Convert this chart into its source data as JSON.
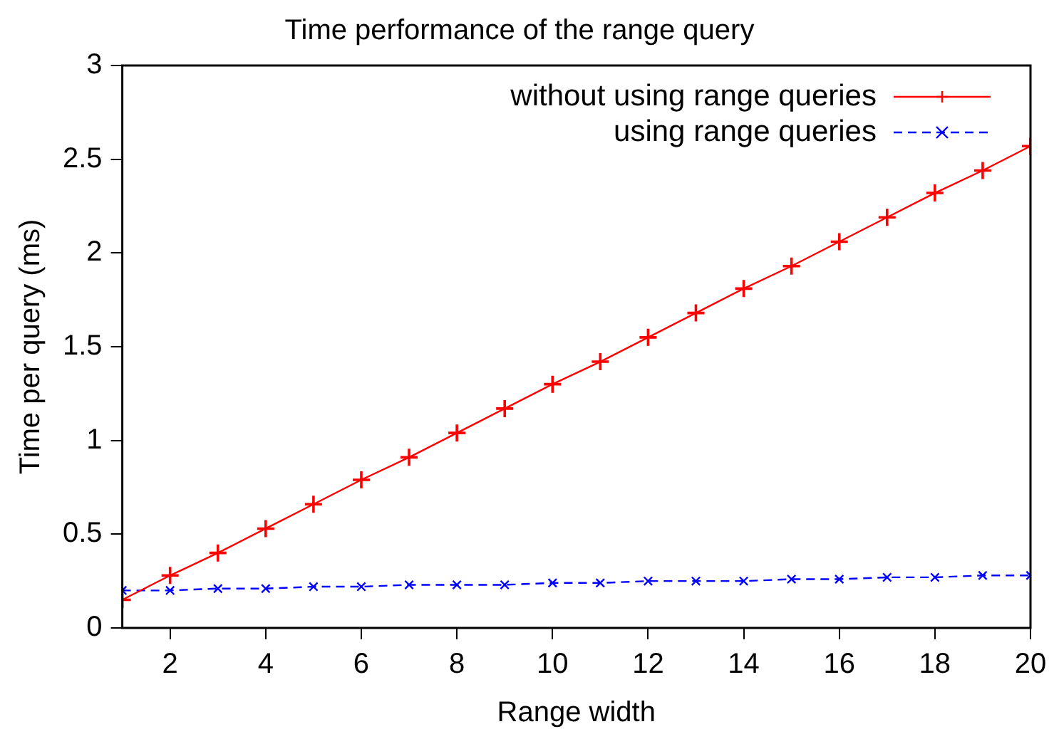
{
  "chart_data": {
    "type": "line",
    "title": "Time performance of the range query",
    "xlabel": "Range width",
    "ylabel": "Time per query (ms)",
    "x": [
      1,
      2,
      3,
      4,
      5,
      6,
      7,
      8,
      9,
      10,
      11,
      12,
      13,
      14,
      15,
      16,
      17,
      18,
      19,
      20
    ],
    "xlim": [
      1,
      20
    ],
    "xticks": [
      2,
      4,
      6,
      8,
      10,
      12,
      14,
      16,
      18,
      20
    ],
    "ylim": [
      0,
      3
    ],
    "yticks": [
      0,
      0.5,
      1,
      1.5,
      2,
      2.5,
      3
    ],
    "series": [
      {
        "name": "without using range queries",
        "color": "#ff0000",
        "marker": "cross",
        "line_style": "solid",
        "values": [
          0.15,
          0.28,
          0.4,
          0.53,
          0.66,
          0.79,
          0.91,
          1.04,
          1.17,
          1.3,
          1.42,
          1.55,
          1.68,
          1.81,
          1.93,
          2.06,
          2.19,
          2.32,
          2.44,
          2.57
        ]
      },
      {
        "name": "using range queries",
        "color": "#0000ff",
        "marker": "cross",
        "line_style": "dashed",
        "values": [
          0.2,
          0.2,
          0.21,
          0.21,
          0.22,
          0.22,
          0.23,
          0.23,
          0.23,
          0.24,
          0.24,
          0.25,
          0.25,
          0.25,
          0.26,
          0.26,
          0.27,
          0.27,
          0.28,
          0.28
        ]
      }
    ],
    "grid": false,
    "legend": "top right"
  }
}
